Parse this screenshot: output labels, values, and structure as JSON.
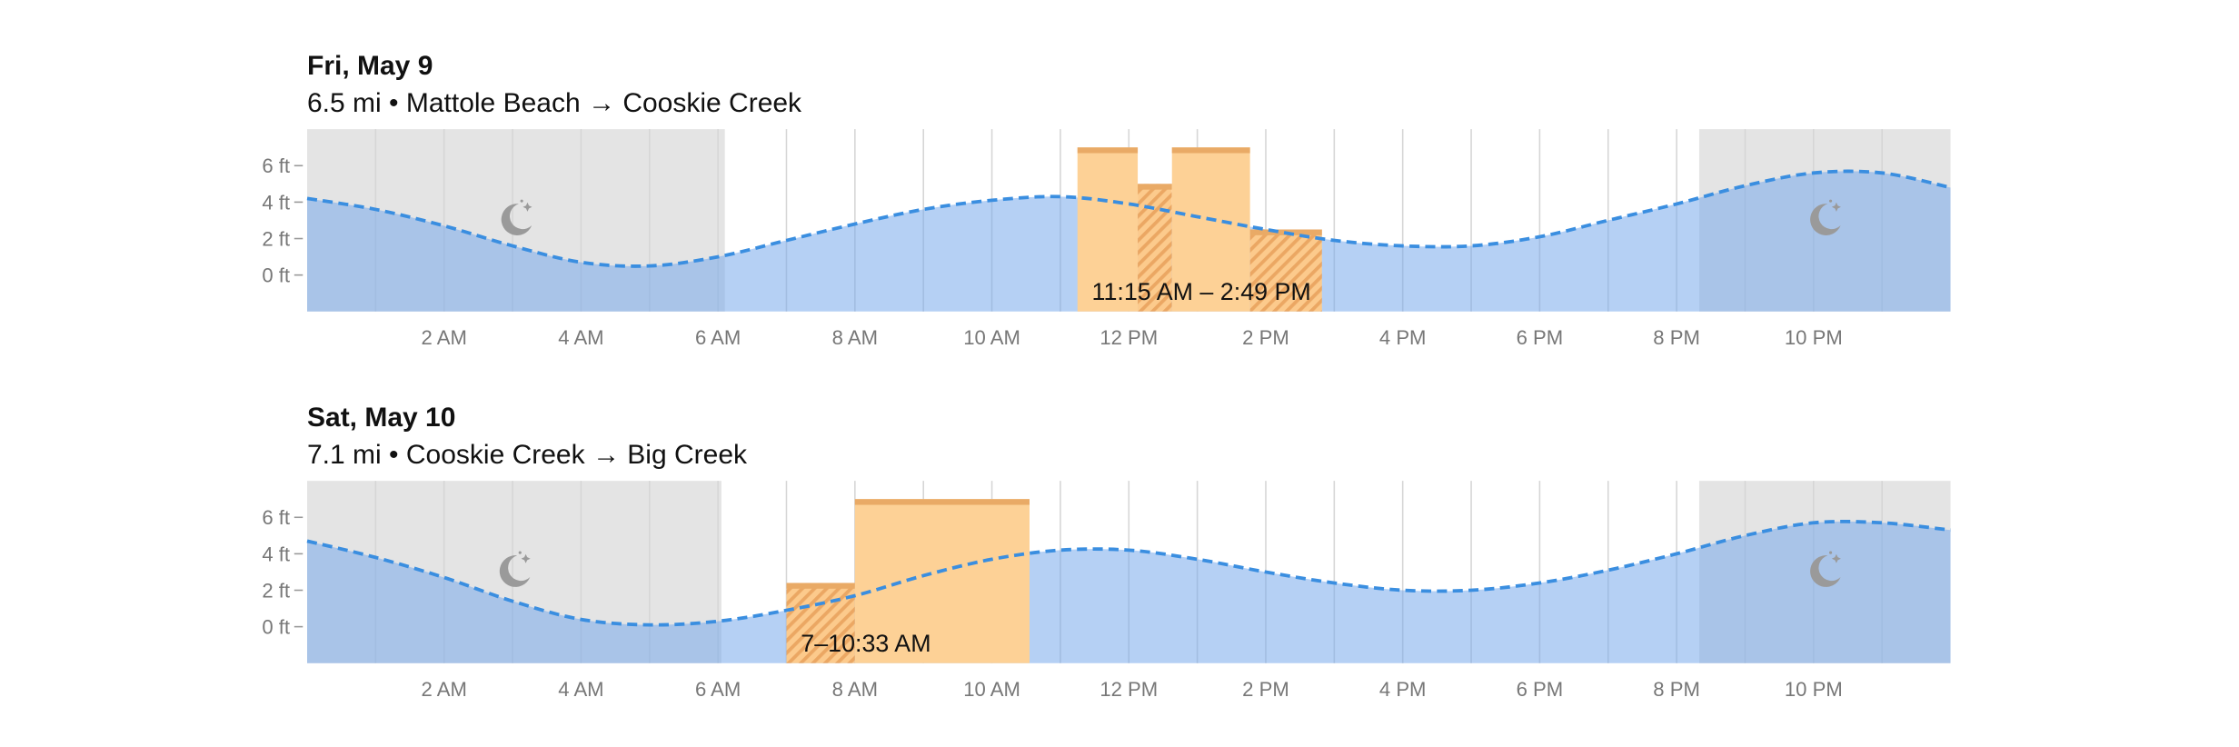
{
  "chart_data": [
    {
      "type": "area",
      "title": "Fri, May 9",
      "subtitle": "6.5 mi • Mattole Beach → Cooskie Creek",
      "x": [
        0,
        1,
        2,
        3,
        4,
        5,
        6,
        7,
        8,
        9,
        10,
        11,
        12,
        13,
        14,
        15,
        16,
        17,
        18,
        19,
        20,
        21,
        22,
        23,
        24
      ],
      "values": [
        4.2,
        3.6,
        2.7,
        1.6,
        0.7,
        0.5,
        1.0,
        1.9,
        2.8,
        3.6,
        4.1,
        4.3,
        3.9,
        3.2,
        2.5,
        1.9,
        1.6,
        1.6,
        2.1,
        3.0,
        3.9,
        4.9,
        5.6,
        5.6,
        4.8
      ],
      "color": "#3a8ee0",
      "night": [
        [
          0,
          6.1
        ],
        [
          20.33,
          24
        ]
      ],
      "segments": [
        {
          "start": 11.25,
          "end": 12.13,
          "height": 7.0,
          "hatched": false
        },
        {
          "start": 12.13,
          "end": 12.63,
          "height": 5.0,
          "hatched": true
        },
        {
          "start": 12.63,
          "end": 13.77,
          "height": 7.0,
          "hatched": false
        },
        {
          "start": 13.77,
          "end": 14.82,
          "height": 2.5,
          "hatched": true
        }
      ],
      "window_label": "11:15 AM – 2:49 PM",
      "xlim": [
        0,
        24
      ],
      "ylim": [
        -2,
        8
      ],
      "xticks": [
        {
          "value": 2,
          "label": "2 AM"
        },
        {
          "value": 4,
          "label": "4 AM"
        },
        {
          "value": 6,
          "label": "6 AM"
        },
        {
          "value": 8,
          "label": "8 AM"
        },
        {
          "value": 10,
          "label": "10 AM"
        },
        {
          "value": 12,
          "label": "12 PM"
        },
        {
          "value": 14,
          "label": "2 PM"
        },
        {
          "value": 16,
          "label": "4 PM"
        },
        {
          "value": 18,
          "label": "6 PM"
        },
        {
          "value": 20,
          "label": "8 PM"
        },
        {
          "value": 22,
          "label": "10 PM"
        }
      ],
      "xminorticks": [
        1,
        3,
        5,
        7,
        9,
        11,
        13,
        15,
        17,
        19,
        21,
        23
      ],
      "yticks": [
        {
          "value": 6,
          "label": "6 ft"
        },
        {
          "value": 4,
          "label": "4 ft"
        },
        {
          "value": 2,
          "label": "2 ft"
        },
        {
          "value": 0,
          "label": "0 ft"
        }
      ]
    },
    {
      "type": "area",
      "title": "Sat, May 10",
      "subtitle": "7.1 mi • Cooskie Creek → Big Creek",
      "x": [
        0,
        1,
        2,
        3,
        4,
        5,
        6,
        7,
        8,
        9,
        10,
        11,
        12,
        13,
        14,
        15,
        16,
        17,
        18,
        19,
        20,
        21,
        22,
        23,
        24
      ],
      "values": [
        4.7,
        3.8,
        2.7,
        1.4,
        0.4,
        0.1,
        0.3,
        0.9,
        1.7,
        2.8,
        3.7,
        4.2,
        4.2,
        3.7,
        3.0,
        2.4,
        2.0,
        2.0,
        2.4,
        3.1,
        4.0,
        5.0,
        5.7,
        5.7,
        5.3
      ],
      "color": "#3a8ee0",
      "night": [
        [
          0,
          6.05
        ],
        [
          20.33,
          24
        ]
      ],
      "segments": [
        {
          "start": 7.0,
          "end": 8.0,
          "height": 2.4,
          "hatched": true
        },
        {
          "start": 8.0,
          "end": 10.55,
          "height": 7.0,
          "hatched": false
        }
      ],
      "window_label": "7–10:33 AM",
      "xlim": [
        0,
        24
      ],
      "ylim": [
        -2,
        8
      ],
      "xticks": [
        {
          "value": 2,
          "label": "2 AM"
        },
        {
          "value": 4,
          "label": "4 AM"
        },
        {
          "value": 6,
          "label": "6 AM"
        },
        {
          "value": 8,
          "label": "8 AM"
        },
        {
          "value": 10,
          "label": "10 AM"
        },
        {
          "value": 12,
          "label": "12 PM"
        },
        {
          "value": 14,
          "label": "2 PM"
        },
        {
          "value": 16,
          "label": "4 PM"
        },
        {
          "value": 18,
          "label": "6 PM"
        },
        {
          "value": 20,
          "label": "8 PM"
        },
        {
          "value": 22,
          "label": "10 PM"
        }
      ],
      "xminorticks": [
        1,
        3,
        5,
        7,
        9,
        11,
        13,
        15,
        17,
        19,
        21,
        23
      ],
      "yticks": [
        {
          "value": 6,
          "label": "6 ft"
        },
        {
          "value": 4,
          "label": "4 ft"
        },
        {
          "value": 2,
          "label": "2 ft"
        },
        {
          "value": 0,
          "label": "0 ft"
        }
      ]
    }
  ]
}
